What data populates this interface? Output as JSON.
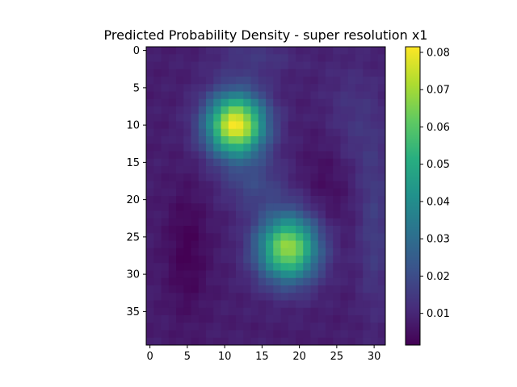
{
  "chart_data": {
    "type": "heatmap",
    "title": "Predicted Probability Density - super resolution x1",
    "xlabel": "",
    "ylabel": "",
    "grid": false,
    "rows": 40,
    "cols": 32,
    "x_ticks": [
      "0",
      "5",
      "10",
      "15",
      "20",
      "25",
      "30"
    ],
    "y_ticks": [
      "0",
      "5",
      "10",
      "15",
      "20",
      "25",
      "30",
      "35"
    ],
    "colorbar": {
      "colormap": "viridis",
      "min": 0.0015,
      "max": 0.0815,
      "ticks": [
        "0.01",
        "0.02",
        "0.03",
        "0.04",
        "0.05",
        "0.06",
        "0.07",
        "0.08"
      ]
    },
    "background_level": 0.008,
    "peaks": [
      {
        "row": 10,
        "col": 11.5,
        "value": 0.081
      },
      {
        "row": 26.5,
        "col": 18.5,
        "value": 0.069
      }
    ]
  }
}
